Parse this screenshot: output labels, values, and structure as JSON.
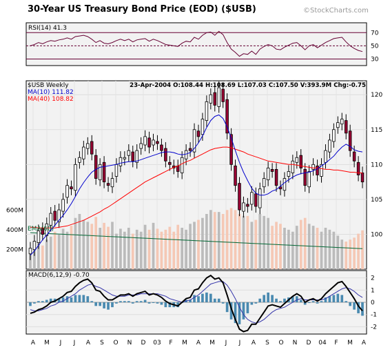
{
  "title": "30-Year US Treasury Bond Price (EOD) ($USB)",
  "watermark": "©StockCharts.com",
  "rsi": {
    "label": "RSI(14) 41.3",
    "ticks": [
      "70",
      "50",
      "30"
    ]
  },
  "price_panel": {
    "series_label": "$USB Weekly",
    "ma10_label": "MA(10) 111.82",
    "ma40_label": "MA(40) 108.82",
    "info": "23-Apr-2004 O:108.44 H:108.69 L:107.03 C:107.50 V:393.9M Chg:-0.75",
    "price_ticks": [
      "120",
      "115",
      "110",
      "105",
      "100"
    ],
    "volume_ticks": [
      "600M",
      "400M",
      "200M"
    ],
    "ema_label": "EMA(60)"
  },
  "macd": {
    "label": "MACD(6,12,9) -0.70",
    "ticks": [
      "2",
      "1",
      "0",
      "-1",
      "-2"
    ]
  },
  "x_labels": [
    "A",
    "M",
    "J",
    "J",
    "A",
    "S",
    "O",
    "N",
    "D",
    "03",
    "F",
    "M",
    "A",
    "M",
    "J",
    "J",
    "A",
    "S",
    "O",
    "N",
    "D",
    "04",
    "F",
    "M",
    "A"
  ],
  "colors": {
    "up": "#ffffff",
    "down": "#990033",
    "ma10": "#0000cc",
    "ma40": "#ff0000",
    "ema60": "#006633",
    "vol_up": "#bbbbbb",
    "vol_down": "#f5c8b5",
    "panel_bg": "#f2f2f2"
  },
  "chart_data": {
    "type": "candlestick",
    "period": "weekly",
    "close": [
      98,
      99,
      100.5,
      100,
      101.5,
      103,
      102,
      103.5,
      105,
      107,
      106.5,
      110,
      111,
      112.5,
      113,
      111.5,
      108,
      110,
      107.5,
      107,
      108,
      110,
      111,
      111,
      112,
      110.5,
      112,
      113,
      114,
      112.5,
      113.5,
      113,
      112,
      110.5,
      110,
      109.5,
      109,
      111,
      112,
      112,
      115,
      114,
      116.5,
      119,
      120,
      118.5,
      121,
      119,
      114.5,
      110,
      107,
      103.5,
      104.5,
      104,
      106,
      104,
      106.5,
      108,
      109.5,
      109,
      107,
      106.5,
      108,
      109,
      110.5,
      111,
      109.5,
      107,
      109,
      110,
      108.5,
      110,
      112,
      113.5,
      115,
      116,
      116.5,
      114.5,
      112,
      110.5,
      108.5,
      107.5
    ],
    "ma10": [
      97,
      97.6,
      98.4,
      99.2,
      99.9,
      100.6,
      101.3,
      102,
      102.7,
      103.5,
      104.4,
      105.4,
      106.5,
      107.4,
      108.2,
      108.9,
      109.3,
      109.6,
      109.7,
      109.8,
      109.9,
      110,
      110.2,
      110.3,
      110.4,
      110.4,
      110.5,
      110.7,
      110.9,
      111.1,
      111.3,
      111.5,
      111.7,
      111.8,
      111.8,
      111.7,
      111.5,
      111.4,
      111.5,
      111.7,
      112.3,
      113.1,
      114.1,
      115.3,
      116.3,
      116.9,
      117.1,
      116.6,
      115.4,
      113.8,
      112,
      110.3,
      108.9,
      107.7,
      106.6,
      105.9,
      105.6,
      105.6,
      105.8,
      106.2,
      106.4,
      106.9,
      107.4,
      107.8,
      108.2,
      108.5,
      108.7,
      108.8,
      108.9,
      109.1,
      109.4,
      109.8,
      110.2,
      110.7,
      111.2,
      111.9,
      112.5,
      112.9,
      112.6,
      112.1,
      111.9,
      111.8
    ],
    "ma40": [
      101,
      101,
      100.9,
      100.9,
      100.9,
      100.9,
      100.9,
      101,
      101.1,
      101.2,
      101.4,
      101.6,
      101.8,
      102,
      102.3,
      102.6,
      102.9,
      103.2,
      103.6,
      103.9,
      104.3,
      104.7,
      105.1,
      105.5,
      105.9,
      106.3,
      106.7,
      107.1,
      107.5,
      107.8,
      108.1,
      108.4,
      108.7,
      109,
      109.3,
      109.6,
      109.8,
      110.1,
      110.4,
      110.6,
      110.9,
      111.2,
      111.5,
      111.8,
      112.1,
      112.3,
      112.4,
      112.5,
      112.5,
      112.4,
      112.2,
      112,
      111.8,
      111.5,
      111.3,
      111.1,
      110.9,
      110.7,
      110.5,
      110.4,
      110.3,
      110.2,
      110.1,
      110,
      110,
      109.9,
      109.8,
      109.7,
      109.6,
      109.5,
      109.5,
      109.4,
      109.3,
      109.3,
      109.2,
      109.2,
      109.1,
      109,
      108.9,
      108.9,
      108.8,
      108.8
    ],
    "volume_M": [
      180,
      210,
      260,
      240,
      300,
      330,
      380,
      350,
      410,
      380,
      440,
      520,
      560,
      500,
      480,
      460,
      530,
      420,
      470,
      430,
      480,
      360,
      410,
      380,
      420,
      360,
      400,
      380,
      450,
      400,
      470,
      410,
      380,
      400,
      430,
      380,
      450,
      420,
      400,
      460,
      480,
      500,
      520,
      560,
      600,
      580,
      580,
      560,
      600,
      620,
      600,
      560,
      540,
      540,
      480,
      500,
      560,
      540,
      520,
      440,
      480,
      460,
      420,
      400,
      380,
      440,
      500,
      520,
      460,
      440,
      420,
      380,
      420,
      400,
      380,
      340,
      300,
      280,
      300,
      320,
      360,
      394
    ],
    "ema60_M": [
      370,
      368,
      366,
      364,
      362,
      360,
      358,
      356,
      354,
      352,
      350,
      348,
      346,
      344,
      342,
      340,
      338,
      336,
      334,
      332,
      330,
      328,
      326,
      324,
      322,
      320,
      318,
      316,
      314,
      312,
      310,
      308,
      306,
      304,
      302,
      300,
      298,
      296,
      294,
      292,
      290,
      288,
      286,
      284,
      282,
      280,
      278,
      276,
      274,
      272,
      270,
      268,
      266,
      264,
      262,
      260,
      258,
      256,
      254,
      252,
      250,
      248,
      246,
      244,
      242,
      240,
      238,
      236,
      234,
      232,
      230,
      228,
      226,
      224,
      222,
      220,
      218,
      216,
      214,
      212,
      210,
      208
    ],
    "rsi14": [
      50,
      52,
      55,
      53,
      56,
      58,
      57,
      59,
      60,
      62,
      60,
      64,
      65,
      66,
      64,
      60,
      55,
      58,
      54,
      53,
      55,
      58,
      60,
      58,
      60,
      56,
      59,
      60,
      61,
      57,
      60,
      58,
      55,
      52,
      51,
      50,
      49,
      54,
      57,
      56,
      63,
      60,
      66,
      70,
      71,
      66,
      72,
      67,
      55,
      45,
      40,
      34,
      38,
      37,
      42,
      37,
      45,
      49,
      52,
      50,
      45,
      44,
      48,
      51,
      54,
      55,
      50,
      44,
      50,
      52,
      47,
      51,
      55,
      58,
      61,
      62,
      63,
      56,
      50,
      46,
      43,
      41.3
    ],
    "macd_line": [
      -0.9,
      -0.8,
      -0.6,
      -0.5,
      -0.3,
      0,
      0.1,
      0.3,
      0.5,
      0.8,
      0.9,
      1.3,
      1.6,
      1.8,
      1.9,
      1.6,
      1,
      0.9,
      0.5,
      0.2,
      0.2,
      0.4,
      0.6,
      0.6,
      0.7,
      0.5,
      0.7,
      0.8,
      0.9,
      0.6,
      0.7,
      0.6,
      0.4,
      0.1,
      -0.1,
      -0.2,
      -0.3,
      0,
      0.3,
      0.4,
      1,
      1.1,
      1.6,
      2,
      2.2,
      1.9,
      2,
      1.6,
      0.6,
      -0.5,
      -1.4,
      -2.2,
      -2.4,
      -2.3,
      -1.8,
      -1.8,
      -1.3,
      -0.8,
      -0.3,
      -0.2,
      -0.3,
      -0.4,
      -0.1,
      0.2,
      0.5,
      0.7,
      0.5,
      0,
      0.2,
      0.3,
      0.1,
      0.3,
      0.7,
      1,
      1.3,
      1.6,
      1.7,
      1.3,
      0.8,
      0.3,
      -0.3,
      -0.7
    ],
    "macd_signal": [
      -0.6,
      -0.7,
      -0.7,
      -0.6,
      -0.5,
      -0.3,
      -0.2,
      0,
      0.1,
      0.3,
      0.5,
      0.7,
      1,
      1.2,
      1.4,
      1.5,
      1.3,
      1.2,
      1,
      0.8,
      0.6,
      0.5,
      0.5,
      0.5,
      0.6,
      0.6,
      0.6,
      0.7,
      0.7,
      0.7,
      0.7,
      0.7,
      0.6,
      0.5,
      0.3,
      0.2,
      0.1,
      0,
      0.1,
      0.2,
      0.4,
      0.6,
      0.9,
      1.2,
      1.5,
      1.6,
      1.7,
      1.7,
      1.4,
      0.9,
      0.3,
      -0.4,
      -1,
      -1.4,
      -1.6,
      -1.7,
      -1.6,
      -1.4,
      -1.1,
      -0.8,
      -0.6,
      -0.5,
      -0.4,
      -0.2,
      0,
      0.2,
      0.3,
      0.2,
      0.2,
      0.2,
      0.2,
      0.2,
      0.3,
      0.5,
      0.7,
      0.9,
      1.1,
      1.2,
      1.1,
      0.9,
      0.6,
      0.4
    ],
    "price_range": [
      95,
      122
    ],
    "volume_range": [
      0,
      700
    ],
    "rsi_range": [
      20,
      85
    ],
    "macd_range": [
      -2.6,
      2.6
    ]
  }
}
